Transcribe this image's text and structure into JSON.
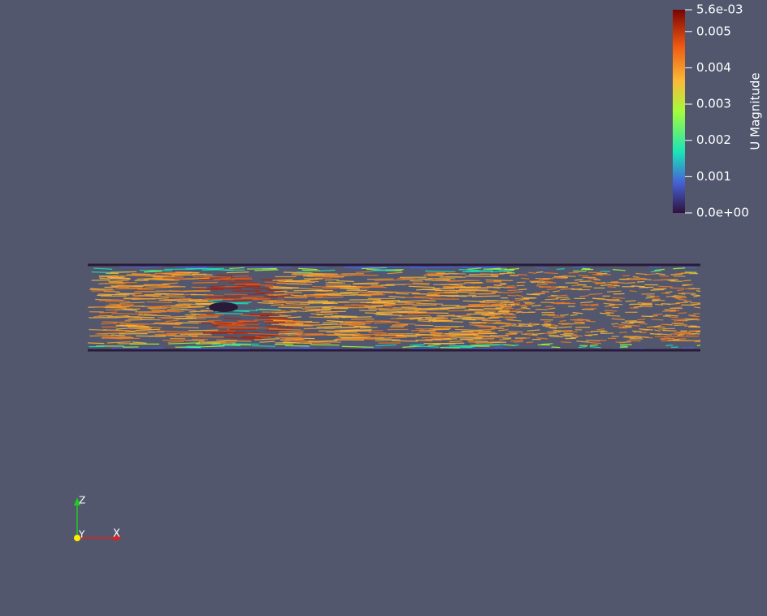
{
  "colorbar": {
    "title": "U Magnitude",
    "range": [
      0,
      0.0056
    ],
    "ticks": [
      {
        "value": 0.0056,
        "label": "5.6e-03"
      },
      0.005,
      0.004,
      0.003,
      0.002,
      0.001,
      {
        "value": 0,
        "label": "0.0e+00"
      }
    ]
  },
  "axes_triad": {
    "z_label": "Z",
    "y_label": "Y",
    "x_label": "X"
  }
}
